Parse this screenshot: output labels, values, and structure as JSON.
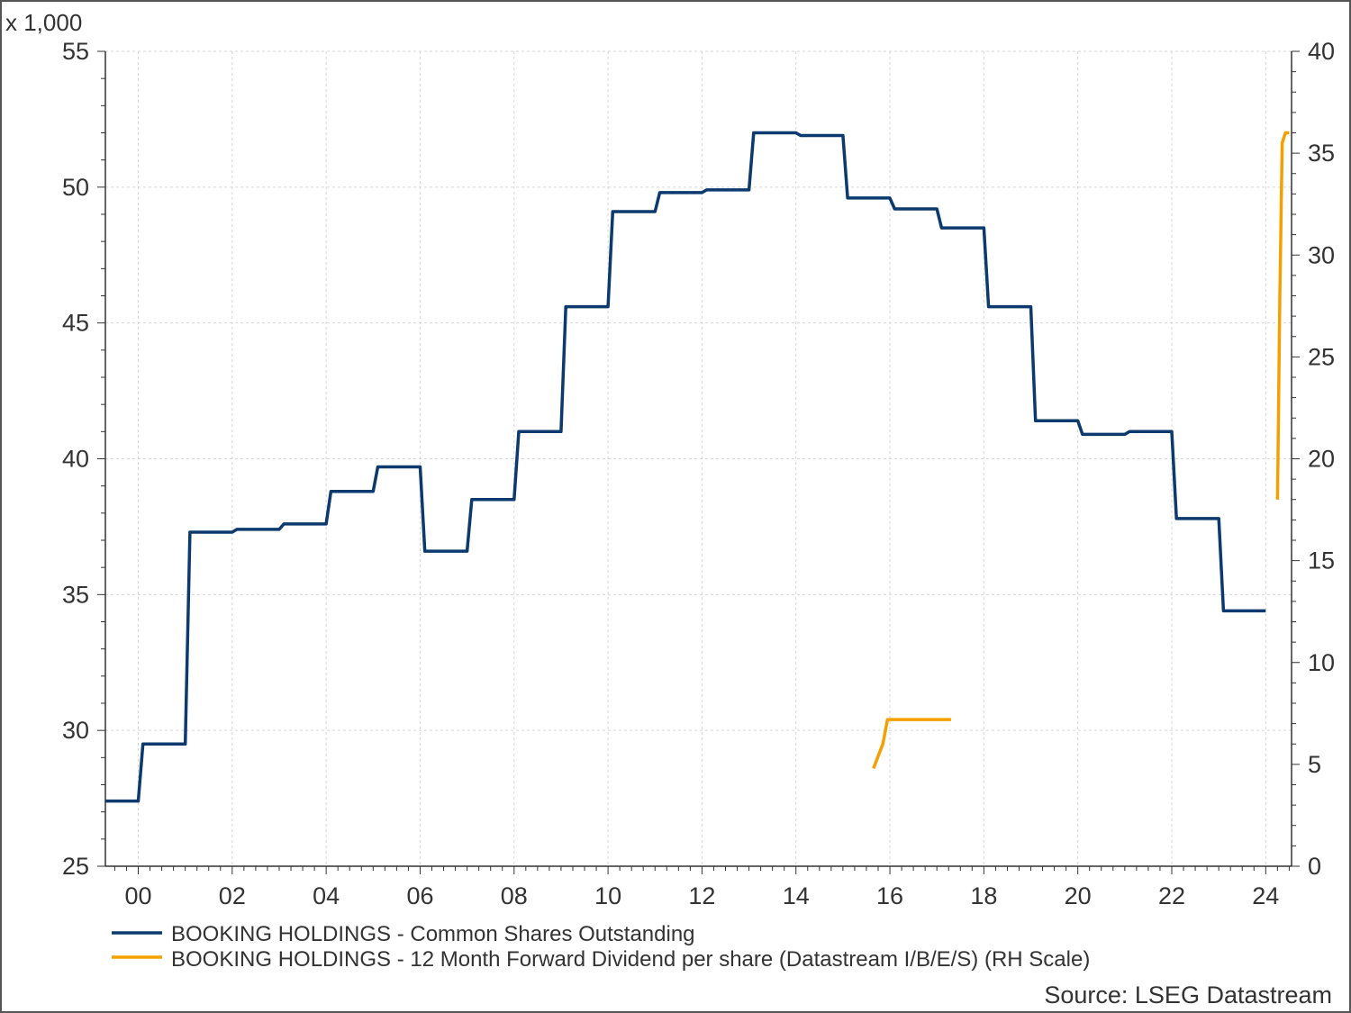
{
  "chart_data": {
    "type": "line",
    "left_scale_note": "x 1,000",
    "source": "Source: LSEG Datastream",
    "grid": true,
    "legend_position": "bottom-left",
    "x_axis": {
      "min": 1999.3,
      "max": 2024.55,
      "ticks": [
        2000,
        2002,
        2004,
        2006,
        2008,
        2010,
        2012,
        2014,
        2016,
        2018,
        2020,
        2022,
        2024
      ],
      "tick_labels": [
        "00",
        "02",
        "04",
        "06",
        "08",
        "10",
        "12",
        "14",
        "16",
        "18",
        "20",
        "22",
        "24"
      ]
    },
    "y_left": {
      "min": 25,
      "max": 55,
      "ticks": [
        25,
        30,
        35,
        40,
        45,
        50,
        55
      ],
      "tick_labels": [
        "25",
        "30",
        "35",
        "40",
        "45",
        "50",
        "55"
      ]
    },
    "y_right": {
      "min": 0,
      "max": 40,
      "ticks": [
        0,
        5,
        10,
        15,
        20,
        25,
        30,
        35,
        40
      ],
      "tick_labels": [
        "0",
        "5",
        "10",
        "15",
        "20",
        "25",
        "30",
        "35",
        "40"
      ]
    },
    "series": [
      {
        "name": "BOOKING HOLDINGS - Common Shares Outstanding",
        "axis": "left",
        "color": "#0c3a6e",
        "x": [
          1999.3,
          2000.0,
          2000.1,
          2001.0,
          2001.1,
          2002.0,
          2002.1,
          2003.0,
          2003.1,
          2004.0,
          2004.1,
          2005.0,
          2005.1,
          2006.0,
          2006.1,
          2007.0,
          2007.1,
          2008.0,
          2008.1,
          2009.0,
          2009.1,
          2010.0,
          2010.1,
          2011.0,
          2011.1,
          2012.0,
          2012.1,
          2013.0,
          2013.1,
          2014.0,
          2014.1,
          2015.0,
          2015.1,
          2016.0,
          2016.1,
          2017.0,
          2017.1,
          2018.0,
          2018.1,
          2019.0,
          2019.1,
          2020.0,
          2020.1,
          2021.0,
          2021.1,
          2022.0,
          2022.1,
          2023.0,
          2023.1,
          2024.0
        ],
        "values": [
          27.4,
          27.4,
          29.5,
          29.5,
          37.3,
          37.3,
          37.4,
          37.4,
          37.6,
          37.6,
          38.8,
          38.8,
          39.7,
          39.7,
          36.6,
          36.6,
          38.5,
          38.5,
          41.0,
          41.0,
          45.6,
          45.6,
          49.1,
          49.1,
          49.8,
          49.8,
          49.9,
          49.9,
          52.0,
          52.0,
          51.9,
          51.9,
          49.6,
          49.6,
          49.2,
          49.2,
          48.5,
          48.5,
          45.6,
          45.6,
          41.4,
          41.4,
          40.9,
          40.9,
          41.0,
          41.0,
          37.8,
          37.8,
          34.4,
          34.4
        ]
      },
      {
        "name": "BOOKING HOLDINGS - 12 Month Forward Dividend per share (Datastream I/B/E/S) (RH Scale)",
        "axis": "right",
        "color": "#f5a000",
        "segments": [
          {
            "x": [
              2015.65,
              2015.85,
              2015.95,
              2016.1,
              2017.3
            ],
            "values": [
              4.8,
              6.0,
              7.2,
              7.2,
              7.2
            ]
          },
          {
            "x": [
              2024.25,
              2024.3,
              2024.35,
              2024.42,
              2024.5
            ],
            "values": [
              18.0,
              28.0,
              35.5,
              36.0,
              36.0
            ]
          }
        ]
      }
    ]
  }
}
